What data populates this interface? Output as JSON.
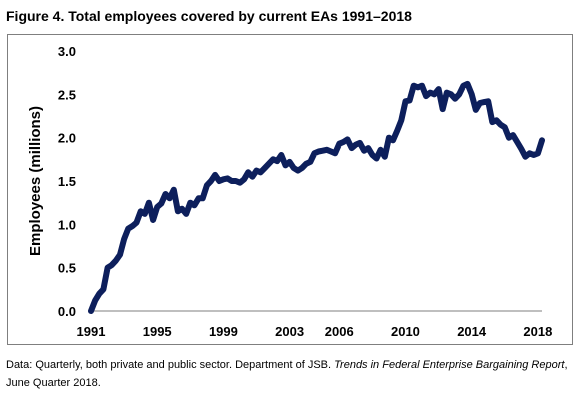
{
  "figure_title": "Figure 4. Total employees covered by current EAs 1991–2018",
  "source_note": {
    "prefix": "Data: Quarterly, both private and public sector. Department of JSB. ",
    "italic": "Trends in Federal Enterprise Bargaining Report",
    "suffix": ", June Quarter 2018."
  },
  "colors": {
    "line": "#0d1f5c",
    "axis": "#7f7f7f"
  },
  "chart_data": {
    "type": "line",
    "ylabel": "Employees (millions)",
    "xlabel": "",
    "xlim": [
      1991.0,
      2018.25
    ],
    "ylim": [
      0,
      3.0
    ],
    "yticks": [
      "0.0",
      "0.5",
      "1.0",
      "1.5",
      "2.0",
      "2.5",
      "3.0"
    ],
    "xticks": [
      "1991",
      "1995",
      "1999",
      "2003",
      "2006",
      "2010",
      "2014",
      "2018"
    ],
    "grid": false,
    "series": [
      {
        "x": [
          1991.0,
          1991.25,
          1991.5,
          1991.75,
          1992.0,
          1992.25,
          1992.5,
          1992.75,
          1993.0,
          1993.25,
          1993.5,
          1993.75,
          1994.0,
          1994.25,
          1994.5,
          1994.75,
          1995.0,
          1995.25,
          1995.5,
          1995.75,
          1996.0,
          1996.25,
          1996.5,
          1996.75,
          1997.0,
          1997.25,
          1997.5,
          1997.75,
          1998.0,
          1998.25,
          1998.5,
          1998.75,
          1999.0,
          1999.25,
          1999.5,
          1999.75,
          2000.0,
          2000.25,
          2000.5,
          2000.75,
          2001.0,
          2001.25,
          2001.5,
          2001.75,
          2002.0,
          2002.25,
          2002.5,
          2002.75,
          2003.0,
          2003.25,
          2003.5,
          2003.75,
          2004.0,
          2004.25,
          2004.5,
          2004.75,
          2005.0,
          2005.25,
          2005.5,
          2005.75,
          2006.0,
          2006.25,
          2006.5,
          2006.75,
          2007.0,
          2007.25,
          2007.5,
          2007.75,
          2008.0,
          2008.25,
          2008.5,
          2008.75,
          2009.0,
          2009.25,
          2009.5,
          2009.75,
          2010.0,
          2010.25,
          2010.5,
          2010.75,
          2011.0,
          2011.25,
          2011.5,
          2011.75,
          2012.0,
          2012.25,
          2012.5,
          2012.75,
          2013.0,
          2013.25,
          2013.5,
          2013.75,
          2014.0,
          2014.25,
          2014.5,
          2014.75,
          2015.0,
          2015.25,
          2015.5,
          2015.75,
          2016.0,
          2016.25,
          2016.5,
          2016.75,
          2017.0,
          2017.25,
          2017.5,
          2017.75,
          2018.0,
          2018.25
        ],
        "y": [
          0.0,
          0.12,
          0.2,
          0.25,
          0.5,
          0.53,
          0.58,
          0.65,
          0.83,
          0.95,
          0.98,
          1.02,
          1.15,
          1.12,
          1.25,
          1.05,
          1.2,
          1.24,
          1.35,
          1.3,
          1.4,
          1.15,
          1.18,
          1.12,
          1.25,
          1.22,
          1.3,
          1.3,
          1.45,
          1.5,
          1.57,
          1.5,
          1.52,
          1.53,
          1.5,
          1.5,
          1.48,
          1.52,
          1.6,
          1.55,
          1.62,
          1.6,
          1.65,
          1.7,
          1.75,
          1.73,
          1.8,
          1.68,
          1.72,
          1.65,
          1.62,
          1.65,
          1.7,
          1.72,
          1.82,
          1.84,
          1.85,
          1.86,
          1.84,
          1.82,
          1.93,
          1.95,
          1.98,
          1.88,
          1.92,
          1.94,
          1.85,
          1.88,
          1.8,
          1.76,
          1.86,
          1.78,
          2.0,
          1.97,
          2.08,
          2.2,
          2.42,
          2.43,
          2.6,
          2.58,
          2.6,
          2.48,
          2.52,
          2.5,
          2.56,
          2.33,
          2.52,
          2.5,
          2.45,
          2.5,
          2.6,
          2.62,
          2.5,
          2.32,
          2.4,
          2.41,
          2.42,
          2.18,
          2.2,
          2.15,
          2.12,
          2.0,
          2.03,
          1.95,
          1.87,
          1.78,
          1.82,
          1.8,
          1.82,
          1.97
        ]
      }
    ]
  }
}
